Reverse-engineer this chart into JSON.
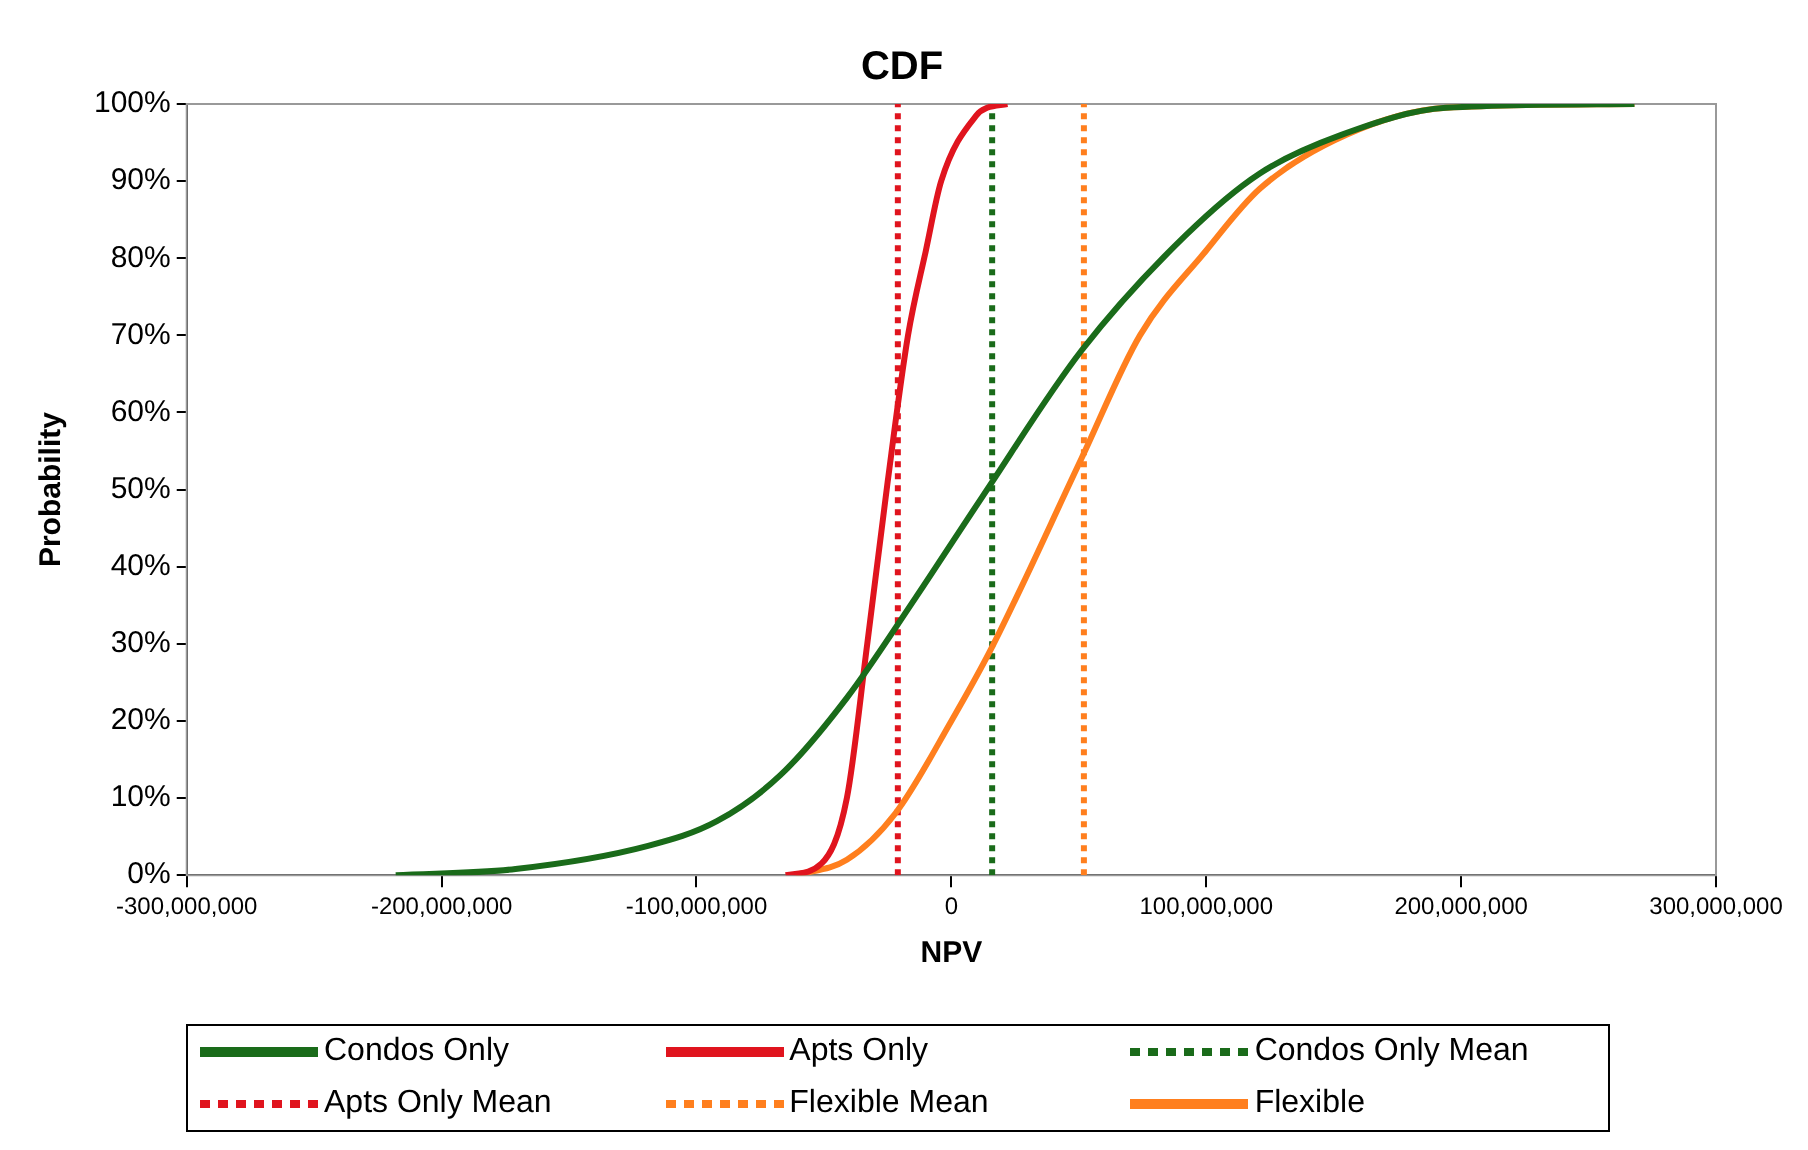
{
  "chart_data": {
    "type": "line",
    "title": "CDF",
    "xlabel": "NPV",
    "ylabel": "Probability",
    "xlim": [
      -300000000,
      300000000
    ],
    "xticks": [
      {
        "value": -300000000,
        "label": "-300,000,000"
      },
      {
        "value": -200000000,
        "label": "-200,000,000"
      },
      {
        "value": -100000000,
        "label": "-100,000,000"
      },
      0,
      {
        "value": 100000000,
        "label": "100,000,000"
      },
      {
        "value": 200000000,
        "label": "200,000,000"
      },
      {
        "value": 300000000,
        "label": "300,000,000"
      }
    ],
    "ylim": [
      0,
      100
    ],
    "yticks": [
      {
        "value": 0,
        "label": "0%"
      },
      {
        "value": 10,
        "label": "10%"
      },
      {
        "value": 20,
        "label": "20%"
      },
      {
        "value": 30,
        "label": "30%"
      },
      {
        "value": 40,
        "label": "40%"
      },
      {
        "value": 50,
        "label": "50%"
      },
      {
        "value": 60,
        "label": "60%"
      },
      {
        "value": 70,
        "label": "70%"
      },
      {
        "value": 80,
        "label": "80%"
      },
      {
        "value": 90,
        "label": "90%"
      },
      {
        "value": 100,
        "label": "100%"
      }
    ],
    "grid": false,
    "legend": "bottom",
    "marker": "none",
    "line_style": "solid",
    "series": [
      {
        "name": "Condos Only",
        "color": "#1a6b1a",
        "x": [
          -218000000,
          -171000000,
          -119000000,
          -92000000,
          -67000000,
          -41000000,
          -14000000,
          0,
          12000000,
          51000000,
          92000000,
          121000000,
          153000000,
          194000000,
          268000000
        ],
        "values": [
          0,
          0.8,
          3.8,
          7,
          13,
          23,
          36,
          43,
          49,
          68,
          83,
          91,
          96,
          99.5,
          100
        ]
      },
      {
        "name": "Apts Only",
        "color": "#e0141e",
        "x": [
          -65000000,
          -51000000,
          -41000000,
          -33000000,
          -25000000,
          -17000000,
          -10000000,
          -4000000,
          10000000,
          14000000,
          22000000
        ],
        "values": [
          0,
          1.5,
          10,
          30,
          51,
          70,
          81,
          90,
          98.6,
          99.5,
          100
        ]
      },
      {
        "name": "Condos Only Mean",
        "type": "line",
        "line_style": "dotted",
        "color": "#1a6b1a",
        "x": [
          16000000,
          16000000
        ],
        "values": [
          0,
          100
        ]
      },
      {
        "name": "Apts Only Mean",
        "type": "line",
        "line_style": "dotted",
        "color": "#e0141e",
        "x": [
          -21000000,
          -21000000
        ],
        "values": [
          0,
          100
        ]
      },
      {
        "name": "Flexible Mean",
        "type": "line",
        "line_style": "dotted",
        "color": "#ff7f1e",
        "x": [
          52000000,
          52000000
        ],
        "values": [
          0,
          100
        ]
      },
      {
        "name": "Flexible",
        "color": "#ff7f1e",
        "x": [
          -61000000,
          -41000000,
          -22000000,
          0,
          16000000,
          51000000,
          74000000,
          100000000,
          121000000,
          155000000,
          194000000,
          268000000
        ],
        "values": [
          0,
          2,
          8,
          20,
          29.6,
          54,
          70,
          81,
          89,
          96,
          99.5,
          100
        ]
      }
    ]
  }
}
